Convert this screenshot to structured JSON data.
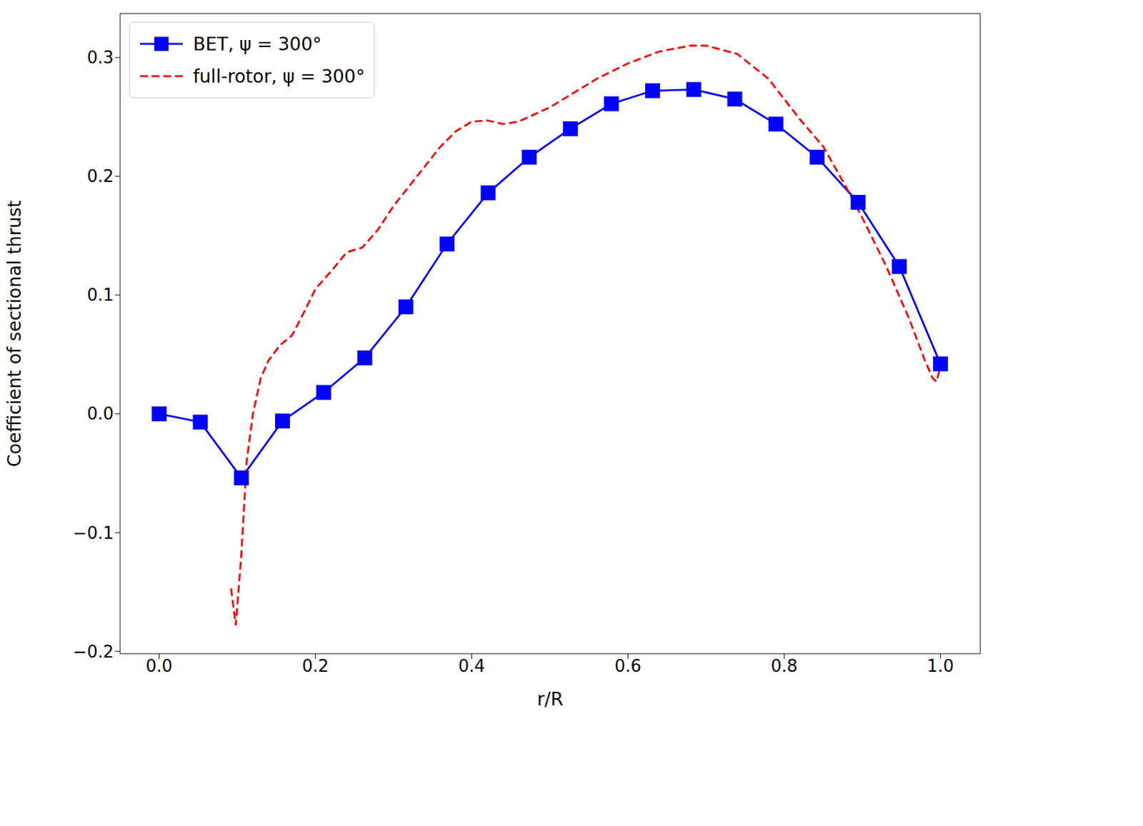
{
  "chart_data": {
    "type": "line",
    "x_label": "r/R",
    "y_label": "Coefficient of sectional thrust",
    "xlim": [
      -0.05,
      1.051
    ],
    "xticks": [
      {
        "value": 0,
        "label": "0.0"
      },
      0.2,
      0.4,
      0.6,
      0.8,
      {
        "value": 1,
        "label": "1.0"
      }
    ],
    "ylim": [
      -0.202,
      0.337
    ],
    "yticks": [
      {
        "value": -0.2,
        "label": "−0.2"
      },
      {
        "value": -0.1,
        "label": "−0.1"
      },
      {
        "value": 0,
        "label": "0.0"
      },
      0.1,
      0.2,
      0.3
    ],
    "grid": false,
    "legend": "upper left",
    "series": [
      {
        "name": "BET, ψ = 300°",
        "color": "#0000ff",
        "marker": "square",
        "line_style": "solid",
        "x": [
          0,
          0.0526,
          0.1053,
          0.1579,
          0.2105,
          0.2632,
          0.3158,
          0.3684,
          0.4211,
          0.4737,
          0.5263,
          0.5789,
          0.6316,
          0.6842,
          0.7368,
          0.7895,
          0.8421,
          0.8947,
          0.9474,
          1.0
        ],
        "values": [
          0.0,
          -0.007,
          -0.054,
          -0.006,
          0.018,
          0.047,
          0.09,
          0.143,
          0.186,
          0.216,
          0.24,
          0.261,
          0.272,
          0.273,
          0.265,
          0.244,
          0.216,
          0.178,
          0.124,
          0.042
        ]
      },
      {
        "name": "full-rotor, ψ = 300°",
        "color": "#ff0000",
        "marker": "none",
        "line_style": "dashed",
        "x": [
          0.092,
          0.098,
          0.105,
          0.112,
          0.12,
          0.13,
          0.14,
          0.155,
          0.17,
          0.185,
          0.2,
          0.22,
          0.24,
          0.26,
          0.28,
          0.3,
          0.33,
          0.36,
          0.38,
          0.4,
          0.42,
          0.44,
          0.46,
          0.48,
          0.5,
          0.53,
          0.56,
          0.6,
          0.64,
          0.68,
          0.7,
          0.74,
          0.78,
          0.8,
          0.82,
          0.85,
          0.88,
          0.9,
          0.93,
          0.96,
          0.98,
          0.99,
          0.995,
          1.0
        ],
        "values": [
          -0.147,
          -0.178,
          -0.12,
          -0.04,
          0.0,
          0.03,
          0.045,
          0.058,
          0.066,
          0.085,
          0.105,
          0.12,
          0.136,
          0.14,
          0.155,
          0.175,
          0.2,
          0.225,
          0.238,
          0.246,
          0.247,
          0.244,
          0.246,
          0.252,
          0.258,
          0.27,
          0.282,
          0.295,
          0.305,
          0.31,
          0.31,
          0.303,
          0.282,
          0.265,
          0.248,
          0.225,
          0.19,
          0.165,
          0.125,
          0.08,
          0.045,
          0.03,
          0.027,
          0.04
        ]
      }
    ]
  }
}
